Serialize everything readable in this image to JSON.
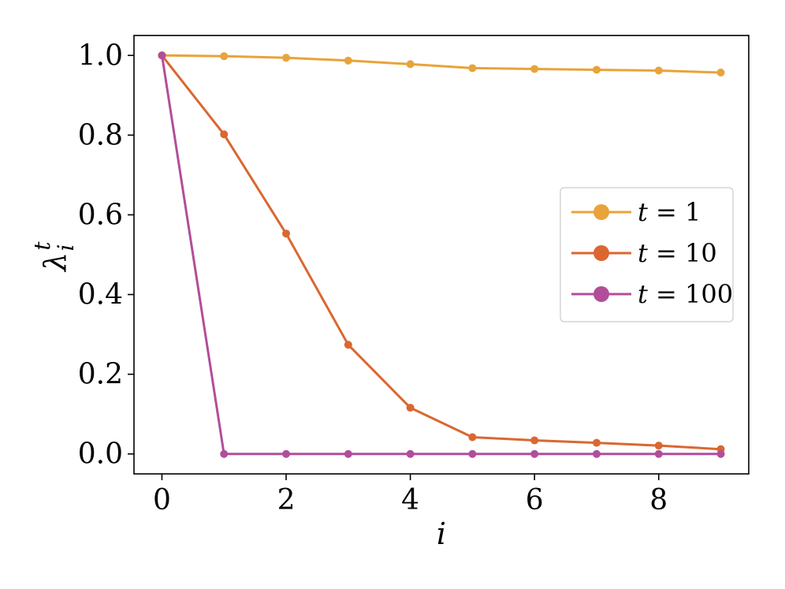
{
  "chart_data": {
    "type": "line",
    "xlabel": "i",
    "ylabel": {
      "base": "λ",
      "sup": "t",
      "sub": "i"
    },
    "xlim": [
      -0.45,
      9.45
    ],
    "ylim": [
      -0.05,
      1.05
    ],
    "xticks": [
      0,
      2,
      4,
      6,
      8
    ],
    "xtick_labels": [
      "0",
      "2",
      "4",
      "6",
      "8"
    ],
    "yticks": [
      0.0,
      0.2,
      0.4,
      0.6,
      0.8,
      1.0
    ],
    "ytick_labels": [
      "0.0",
      "0.2",
      "0.4",
      "0.6",
      "0.8",
      "1.0"
    ],
    "grid": false,
    "legend_position": "center-right",
    "x": [
      0,
      1,
      2,
      3,
      4,
      5,
      6,
      7,
      8,
      9
    ],
    "series": [
      {
        "name": "t = 1",
        "legend_var": "t",
        "legend_rest": " = 1",
        "color": "#E8A33A",
        "values": [
          1.0,
          0.998,
          0.994,
          0.987,
          0.978,
          0.968,
          0.966,
          0.964,
          0.962,
          0.957
        ]
      },
      {
        "name": "t = 10",
        "legend_var": "t",
        "legend_rest": " = 10",
        "color": "#DA6730",
        "values": [
          1.0,
          0.802,
          0.553,
          0.274,
          0.116,
          0.042,
          0.034,
          0.028,
          0.021,
          0.012
        ]
      },
      {
        "name": "t = 100",
        "legend_var": "t",
        "legend_rest": " = 100",
        "color": "#B14E9A",
        "values": [
          1.0,
          0.0,
          0.0,
          0.0,
          0.0,
          0.0,
          0.0,
          0.0,
          0.0,
          0.0
        ]
      }
    ]
  }
}
